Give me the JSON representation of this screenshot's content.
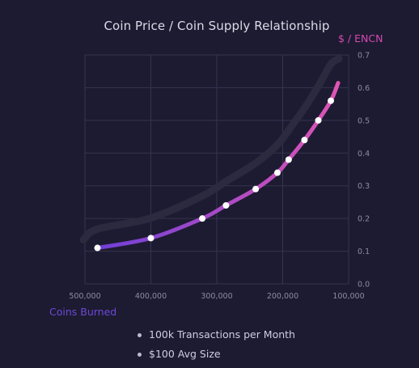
{
  "chart_data": {
    "type": "line",
    "title": "Coin Price / Coin Supply Relationship",
    "ylabel": "$ / ENCN",
    "xlabel": "Coins Burned",
    "xlim": [
      500000,
      100000
    ],
    "ylim": [
      0,
      0.7
    ],
    "x_ticks": [
      500000,
      400000,
      300000,
      200000,
      100000
    ],
    "x_tick_labels": [
      "500,000",
      "400,000",
      "300,000",
      "200,000",
      "100,000"
    ],
    "y_ticks": [
      0,
      0.1,
      0.2,
      0.3,
      0.4,
      0.5,
      0.6,
      0.7
    ],
    "y_tick_labels": [
      "0.0",
      "0.1",
      "0.2",
      "0.3",
      "0.4",
      "0.5",
      "0.6",
      "0.7"
    ],
    "grid": true,
    "series": [
      {
        "points": [
          {
            "x": 481000,
            "y": 0.11
          },
          {
            "x": 400000,
            "y": 0.14
          },
          {
            "x": 322000,
            "y": 0.2
          },
          {
            "x": 286000,
            "y": 0.24
          },
          {
            "x": 241000,
            "y": 0.29
          },
          {
            "x": 208000,
            "y": 0.34
          },
          {
            "x": 191000,
            "y": 0.38
          },
          {
            "x": 167000,
            "y": 0.44
          },
          {
            "x": 146000,
            "y": 0.5
          },
          {
            "x": 127000,
            "y": 0.56
          }
        ]
      }
    ],
    "colors": {
      "line_start": "#6f3fd8",
      "line_end": "#de55b4",
      "grid": "#353450",
      "axis_text": "#8d8ba3",
      "background": "#1d1b31"
    }
  },
  "legend_items": [
    "100k Transactions per Month",
    "$100 Avg Size"
  ]
}
